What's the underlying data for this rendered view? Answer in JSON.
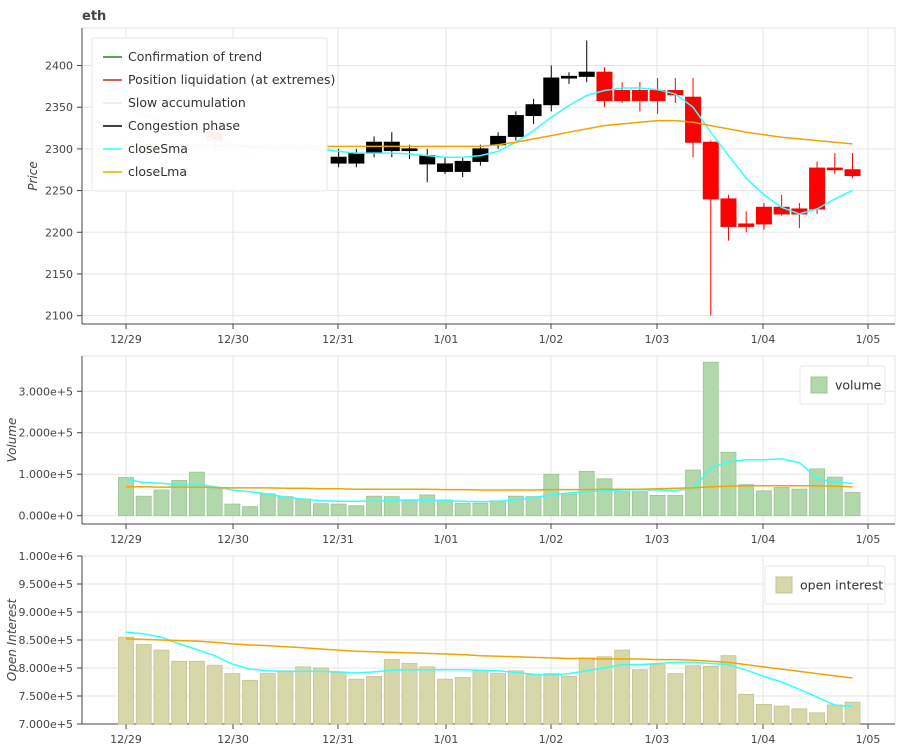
{
  "chart_data": [
    {
      "type": "candlestick",
      "title": "eth",
      "ylabel": "Price",
      "ylim": [
        2090,
        2445
      ],
      "yticks": [
        2100,
        2150,
        2200,
        2250,
        2300,
        2350,
        2400
      ],
      "xticks": [
        "12/29",
        "12/30",
        "12/31",
        "1/01",
        "1/02",
        "1/03",
        "1/04",
        "1/05"
      ],
      "grid": true,
      "legend_position": "top-left",
      "legend": [
        {
          "label": "Confirmation of trend",
          "color": "#228B22"
        },
        {
          "label": "Position liquidation (at extremes)",
          "color": "#c62828"
        },
        {
          "label": "Slow accumulation",
          "color": "#e8e8e8"
        },
        {
          "label": "Congestion phase",
          "color": "#000000"
        },
        {
          "label": "closeSma",
          "color": "#33ffff"
        },
        {
          "label": "closeLma",
          "color": "#f0a500"
        }
      ],
      "candles": [
        {
          "x": 0,
          "o": 2350,
          "h": 2360,
          "l": 2330,
          "c": 2345,
          "phase": "Slow accumulation"
        },
        {
          "x": 1,
          "o": 2345,
          "h": 2362,
          "l": 2330,
          "c": 2355,
          "phase": "Slow accumulation"
        },
        {
          "x": 2,
          "o": 2355,
          "h": 2375,
          "l": 2335,
          "c": 2340,
          "phase": "Slow accumulation"
        },
        {
          "x": 3,
          "o": 2340,
          "h": 2360,
          "l": 2320,
          "c": 2330,
          "phase": "Slow accumulation"
        },
        {
          "x": 4,
          "o": 2330,
          "h": 2345,
          "l": 2305,
          "c": 2320,
          "phase": "Slow accumulation"
        },
        {
          "x": 5,
          "o": 2320,
          "h": 2330,
          "l": 2295,
          "c": 2310,
          "phase": "Position liquidation (at extremes)"
        },
        {
          "x": 6,
          "o": 2310,
          "h": 2320,
          "l": 2295,
          "c": 2300,
          "phase": "Slow accumulation"
        },
        {
          "x": 7,
          "o": 2300,
          "h": 2310,
          "l": 2290,
          "c": 2298,
          "phase": "Slow accumulation"
        },
        {
          "x": 8,
          "o": 2292,
          "h": 2305,
          "l": 2280,
          "c": 2300,
          "phase": "Slow accumulation"
        },
        {
          "x": 9,
          "o": 2295,
          "h": 2315,
          "l": 2280,
          "c": 2310,
          "phase": "Slow accumulation"
        },
        {
          "x": 10,
          "o": 2300,
          "h": 2320,
          "l": 2288,
          "c": 2312,
          "phase": "Slow accumulation"
        },
        {
          "x": 11,
          "o": 2298,
          "h": 2310,
          "l": 2285,
          "c": 2303,
          "phase": "Slow accumulation"
        },
        {
          "x": 12,
          "o": 2290,
          "h": 2300,
          "l": 2278,
          "c": 2283,
          "phase": "Congestion phase"
        },
        {
          "x": 13,
          "o": 2283,
          "h": 2300,
          "l": 2278,
          "c": 2295,
          "phase": "Congestion phase"
        },
        {
          "x": 14,
          "o": 2295,
          "h": 2315,
          "l": 2290,
          "c": 2308,
          "phase": "Congestion phase"
        },
        {
          "x": 15,
          "o": 2308,
          "h": 2320,
          "l": 2290,
          "c": 2298,
          "phase": "Congestion phase"
        },
        {
          "x": 16,
          "o": 2298,
          "h": 2305,
          "l": 2288,
          "c": 2300,
          "phase": "Congestion phase"
        },
        {
          "x": 17,
          "o": 2292,
          "h": 2300,
          "l": 2260,
          "c": 2282,
          "phase": "Congestion phase"
        },
        {
          "x": 18,
          "o": 2282,
          "h": 2290,
          "l": 2270,
          "c": 2273,
          "phase": "Congestion phase"
        },
        {
          "x": 19,
          "o": 2273,
          "h": 2290,
          "l": 2266,
          "c": 2285,
          "phase": "Congestion phase"
        },
        {
          "x": 20,
          "o": 2285,
          "h": 2305,
          "l": 2280,
          "c": 2300,
          "phase": "Congestion phase"
        },
        {
          "x": 21,
          "o": 2305,
          "h": 2320,
          "l": 2300,
          "c": 2315,
          "phase": "Congestion phase"
        },
        {
          "x": 22,
          "o": 2315,
          "h": 2345,
          "l": 2310,
          "c": 2340,
          "phase": "Congestion phase"
        },
        {
          "x": 23,
          "o": 2340,
          "h": 2360,
          "l": 2330,
          "c": 2353,
          "phase": "Congestion phase"
        },
        {
          "x": 24,
          "o": 2353,
          "h": 2400,
          "l": 2345,
          "c": 2385,
          "phase": "Congestion phase"
        },
        {
          "x": 25,
          "o": 2385,
          "h": 2392,
          "l": 2378,
          "c": 2387,
          "phase": "Congestion phase"
        },
        {
          "x": 26,
          "o": 2387,
          "h": 2430,
          "l": 2380,
          "c": 2392,
          "phase": "Congestion phase"
        },
        {
          "x": 27,
          "o": 2392,
          "h": 2398,
          "l": 2350,
          "c": 2358,
          "phase": "Position liquidation (at extremes)"
        },
        {
          "x": 28,
          "o": 2370,
          "h": 2380,
          "l": 2355,
          "c": 2358,
          "phase": "Position liquidation (at extremes)"
        },
        {
          "x": 29,
          "o": 2370,
          "h": 2380,
          "l": 2345,
          "c": 2358,
          "phase": "Position liquidation (at extremes)"
        },
        {
          "x": 30,
          "o": 2370,
          "h": 2385,
          "l": 2342,
          "c": 2358,
          "phase": "Position liquidation (at extremes)"
        },
        {
          "x": 31,
          "o": 2370,
          "h": 2385,
          "l": 2355,
          "c": 2365,
          "phase": "Position liquidation (at extremes)"
        },
        {
          "x": 32,
          "o": 2362,
          "h": 2385,
          "l": 2290,
          "c": 2308,
          "phase": "Position liquidation (at extremes)"
        },
        {
          "x": 33,
          "o": 2308,
          "h": 2310,
          "l": 2100,
          "c": 2240,
          "phase": "Position liquidation (at extremes)"
        },
        {
          "x": 34,
          "o": 2240,
          "h": 2245,
          "l": 2190,
          "c": 2207,
          "phase": "Position liquidation (at extremes)"
        },
        {
          "x": 35,
          "o": 2210,
          "h": 2225,
          "l": 2200,
          "c": 2207,
          "phase": "Position liquidation (at extremes)"
        },
        {
          "x": 36,
          "o": 2230,
          "h": 2235,
          "l": 2203,
          "c": 2210,
          "phase": "Position liquidation (at extremes)"
        },
        {
          "x": 37,
          "o": 2230,
          "h": 2245,
          "l": 2220,
          "c": 2222,
          "phase": "Position liquidation (at extremes)"
        },
        {
          "x": 38,
          "o": 2228,
          "h": 2235,
          "l": 2205,
          "c": 2222,
          "phase": "Position liquidation (at extremes)"
        },
        {
          "x": 39,
          "o": 2277,
          "h": 2285,
          "l": 2222,
          "c": 2228,
          "phase": "Position liquidation (at extremes)"
        },
        {
          "x": 40,
          "o": 2277,
          "h": 2295,
          "l": 2270,
          "c": 2275,
          "phase": "Position liquidation (at extremes)"
        },
        {
          "x": 41,
          "o": 2275,
          "h": 2295,
          "l": 2265,
          "c": 2268,
          "phase": "Position liquidation (at extremes)"
        }
      ],
      "series": [
        {
          "name": "closeSma",
          "values": [
            2350,
            2340,
            2335,
            2325,
            2318,
            2310,
            2305,
            2302,
            2300,
            2300,
            2300,
            2300,
            2297,
            2295,
            2295,
            2295,
            2294,
            2292,
            2290,
            2290,
            2292,
            2297,
            2308,
            2322,
            2338,
            2352,
            2364,
            2370,
            2373,
            2373,
            2371,
            2366,
            2350,
            2320,
            2292,
            2265,
            2245,
            2230,
            2222,
            2228,
            2240,
            2250
          ]
        },
        {
          "name": "closeLma",
          "values": [
            2305,
            2305,
            2305,
            2305,
            2304,
            2304,
            2303,
            2303,
            2303,
            2303,
            2303,
            2303,
            2303,
            2303,
            2303,
            2303,
            2303,
            2303,
            2303,
            2303,
            2303,
            2305,
            2308,
            2312,
            2316,
            2320,
            2324,
            2328,
            2330,
            2332,
            2334,
            2334,
            2332,
            2328,
            2324,
            2320,
            2317,
            2314,
            2312,
            2310,
            2308,
            2306
          ]
        }
      ]
    },
    {
      "type": "bar",
      "ylabel": "Volume",
      "ylim": [
        -20000,
        385000
      ],
      "yticks": [
        "0.000e+0",
        "1.000e+5",
        "2.000e+5",
        "3.000e+5"
      ],
      "xticks": [
        "12/29",
        "12/30",
        "12/31",
        "1/01",
        "1/02",
        "1/03",
        "1/04",
        "1/05"
      ],
      "grid": true,
      "legend_position": "top-right",
      "legend": [
        {
          "label": "volume",
          "color": "#b0d8aa"
        }
      ],
      "values": [
        92000,
        47000,
        62000,
        85000,
        105000,
        65000,
        28000,
        22000,
        53000,
        46000,
        40000,
        29000,
        28000,
        24000,
        47000,
        46000,
        37000,
        50000,
        38000,
        30000,
        30000,
        36000,
        47000,
        46000,
        100000,
        52000,
        107000,
        89000,
        58000,
        58000,
        49000,
        49000,
        110000,
        370000,
        153000,
        75000,
        60000,
        68000,
        64000,
        113000,
        93000,
        56000
      ],
      "series": [
        {
          "name": "closeSma",
          "values": [
            88000,
            80000,
            78000,
            74000,
            76000,
            70000,
            62000,
            58000,
            52000,
            45000,
            40000,
            36000,
            35000,
            35000,
            35000,
            36000,
            38000,
            37000,
            36000,
            35000,
            34000,
            35000,
            38000,
            44000,
            50000,
            55000,
            58000,
            60000,
            62000,
            63000,
            62000,
            61000,
            65000,
            115000,
            130000,
            135000,
            135000,
            137000,
            128000,
            90000,
            80000,
            78000
          ]
        },
        {
          "name": "closeLma",
          "values": [
            70000,
            70000,
            69000,
            69000,
            69000,
            68000,
            67000,
            67000,
            67000,
            66000,
            66000,
            65000,
            65000,
            64000,
            64000,
            64000,
            64000,
            64000,
            63000,
            63000,
            62000,
            62000,
            62000,
            62000,
            63000,
            63000,
            63000,
            64000,
            64000,
            64000,
            65000,
            66000,
            67000,
            70000,
            71000,
            72000,
            72000,
            72000,
            72000,
            72000,
            71000,
            70000
          ]
        }
      ]
    },
    {
      "type": "bar",
      "ylabel": "Open Interest",
      "ylim": [
        700000,
        1000000
      ],
      "yticks": [
        "7.000e+5",
        "7.500e+5",
        "8.000e+5",
        "8.500e+5",
        "9.000e+5",
        "9.500e+5",
        "1.000e+6"
      ],
      "xticks": [
        "12/29",
        "12/30",
        "12/31",
        "1/01",
        "1/02",
        "1/03",
        "1/04",
        "1/05"
      ],
      "grid": true,
      "legend_position": "top-right",
      "legend": [
        {
          "label": "open interest",
          "color": "#d8d7aa"
        }
      ],
      "values": [
        855000,
        842000,
        832000,
        812000,
        812000,
        805000,
        790000,
        778000,
        790000,
        795000,
        802000,
        800000,
        792000,
        780000,
        785000,
        815000,
        808000,
        802000,
        780000,
        783000,
        795000,
        790000,
        795000,
        788000,
        790000,
        785000,
        818000,
        820000,
        832000,
        797000,
        806000,
        790000,
        804000,
        803000,
        822000,
        753000,
        735000,
        732000,
        727000,
        720000,
        734000,
        739000
      ],
      "series": [
        {
          "name": "closeSma",
          "values": [
            864000,
            861000,
            855000,
            843000,
            833000,
            822000,
            807000,
            798000,
            795000,
            794000,
            794000,
            794000,
            793000,
            791000,
            793000,
            796000,
            797000,
            797000,
            797000,
            797000,
            796000,
            795000,
            792000,
            789000,
            787000,
            790000,
            795000,
            800000,
            806000,
            806000,
            808000,
            810000,
            810000,
            808000,
            806000,
            796000,
            785000,
            775000,
            762000,
            748000,
            734000,
            731000
          ]
        },
        {
          "name": "closeLma",
          "values": [
            852000,
            851000,
            850000,
            849000,
            848000,
            846000,
            843000,
            841000,
            840000,
            838000,
            836000,
            834000,
            832000,
            830000,
            829000,
            828000,
            827000,
            826000,
            825000,
            824000,
            822000,
            821000,
            820000,
            819000,
            818000,
            817000,
            817000,
            816000,
            816000,
            816000,
            815000,
            815000,
            814000,
            812000,
            810000,
            806000,
            802000,
            798000,
            794000,
            790000,
            786000,
            782000
          ]
        }
      ]
    }
  ]
}
